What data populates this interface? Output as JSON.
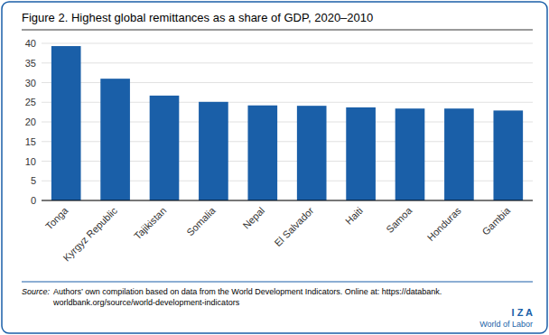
{
  "chart_data": {
    "type": "bar",
    "title": "Figure 2. Highest global remittances as a share of GDP, 2020–2010",
    "categories": [
      "Tonga",
      "Kyrgyz Republic",
      "Tajikistan",
      "Somalia",
      "Nepal",
      "El Salvador",
      "Haiti",
      "Samoa",
      "Honduras",
      "Gambia"
    ],
    "values": [
      39.3,
      31.0,
      26.7,
      25.1,
      24.2,
      24.1,
      23.7,
      23.4,
      23.4,
      22.9
    ],
    "color": "#1a5fa8",
    "ylim": [
      0,
      40
    ],
    "yticks": [
      0,
      5,
      10,
      15,
      20,
      25,
      30,
      35,
      40
    ],
    "grid": true,
    "annotations": [
      "Source:",
      "Authors’ own compilation based on data from the World Development Indicators. Online at: https://databank.",
      "worldbank.org/source/world-development-indicators",
      "I Z A",
      "World of Labor"
    ]
  }
}
